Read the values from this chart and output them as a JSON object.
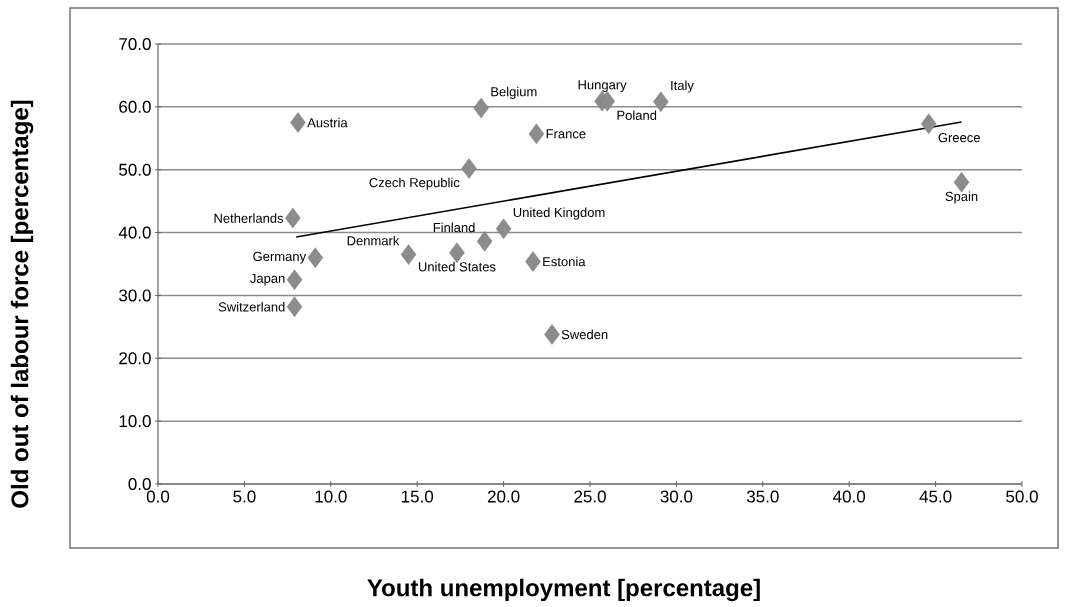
{
  "chart_data": {
    "type": "scatter",
    "xlabel": "Youth unemployment [percentage]",
    "ylabel": "Old out of labour force [percentage]",
    "xlim": [
      0,
      50
    ],
    "ylim": [
      0,
      70
    ],
    "xticks": [
      {
        "value": 0,
        "label": "0.0"
      },
      {
        "value": 5,
        "label": "5.0"
      },
      {
        "value": 10,
        "label": "10.0"
      },
      {
        "value": 15,
        "label": "15.0"
      },
      {
        "value": 20,
        "label": "20.0"
      },
      {
        "value": 25,
        "label": "25.0"
      },
      {
        "value": 30,
        "label": "30.0"
      },
      {
        "value": 35,
        "label": "35.0"
      },
      {
        "value": 40,
        "label": "40.0"
      },
      {
        "value": 45,
        "label": "45.0"
      },
      {
        "value": 50,
        "label": "50.0"
      }
    ],
    "yticks": [
      {
        "value": 0,
        "label": "0.0"
      },
      {
        "value": 10,
        "label": "10.0"
      },
      {
        "value": 20,
        "label": "20.0"
      },
      {
        "value": 30,
        "label": "30.0"
      },
      {
        "value": 40,
        "label": "40.0"
      },
      {
        "value": 50,
        "label": "50.0"
      },
      {
        "value": 60,
        "label": "60.0"
      },
      {
        "value": 70,
        "label": "70.0"
      }
    ],
    "grid": "y",
    "series": [
      {
        "marker": "diamond",
        "color": "#8c8c8c",
        "x": [
          8.1,
          7.8,
          9.1,
          7.9,
          7.9,
          14.5,
          18.0,
          18.7,
          17.3,
          18.9,
          20.0,
          21.7,
          22.8,
          21.9,
          25.7,
          26.0,
          29.1,
          44.6,
          46.5
        ],
        "values": [
          57.5,
          42.3,
          36.0,
          32.5,
          28.2,
          36.5,
          50.2,
          59.8,
          36.8,
          38.6,
          40.6,
          35.4,
          23.8,
          55.7,
          60.9,
          60.9,
          60.8,
          57.3,
          48.0
        ]
      },
      {
        "type": "line",
        "color": "#000000",
        "x": [
          8.0,
          46.5
        ],
        "values": [
          39.3,
          57.6
        ]
      }
    ],
    "annotations": [
      {
        "text": "Austria",
        "x": 8.1,
        "y": 57.5
      },
      {
        "text": "Netherlands",
        "x": 7.8,
        "y": 42.3
      },
      {
        "text": "Germany",
        "x": 9.1,
        "y": 36.0
      },
      {
        "text": "Japan",
        "x": 7.9,
        "y": 32.5
      },
      {
        "text": "Switzerland",
        "x": 7.9,
        "y": 28.2
      },
      {
        "text": "Denmark",
        "x": 14.5,
        "y": 36.5
      },
      {
        "text": "Czech Republic",
        "x": 18.0,
        "y": 50.2
      },
      {
        "text": "Belgium",
        "x": 18.7,
        "y": 59.8
      },
      {
        "text": "United States",
        "x": 17.3,
        "y": 36.8
      },
      {
        "text": "Finland",
        "x": 18.9,
        "y": 38.6
      },
      {
        "text": "United Kingdom",
        "x": 20.0,
        "y": 40.6
      },
      {
        "text": "Estonia",
        "x": 21.7,
        "y": 35.4
      },
      {
        "text": "Sweden",
        "x": 22.8,
        "y": 23.8
      },
      {
        "text": "France",
        "x": 21.9,
        "y": 55.7
      },
      {
        "text": "Hungary",
        "x": 25.7,
        "y": 60.9
      },
      {
        "text": "Poland",
        "x": 26.0,
        "y": 60.9
      },
      {
        "text": "Italy",
        "x": 29.1,
        "y": 60.8
      },
      {
        "text": "Greece",
        "x": 44.6,
        "y": 57.3
      },
      {
        "text": "Spain",
        "x": 46.5,
        "y": 48.0
      }
    ]
  }
}
